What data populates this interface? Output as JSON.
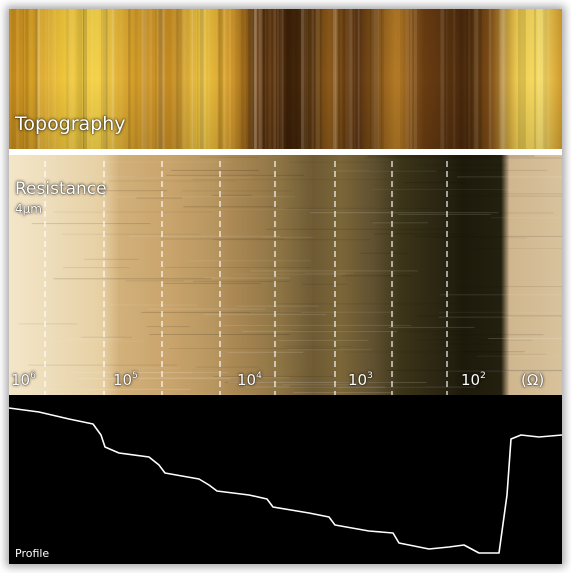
{
  "panels": {
    "topography": {
      "label": "Topography"
    },
    "resistance": {
      "label": "Resistance",
      "scale": "4µm",
      "tick_labels": [
        {
          "base": "10",
          "exp": "6"
        },
        {
          "base": "10",
          "exp": "5"
        },
        {
          "base": "10",
          "exp": "4"
        },
        {
          "base": "10",
          "exp": "3"
        },
        {
          "base": "10",
          "exp": "2"
        }
      ],
      "unit": "(Ω)"
    },
    "profile": {
      "label": "Profile"
    }
  },
  "colors": {
    "topography_dark": "#4a2a0c",
    "topography_light": "#f2d24a",
    "resistance_light": "#f1e2c4",
    "resistance_dark": "#1f1a0c",
    "profile_bg": "#000000",
    "profile_line": "#ffffff"
  }
}
